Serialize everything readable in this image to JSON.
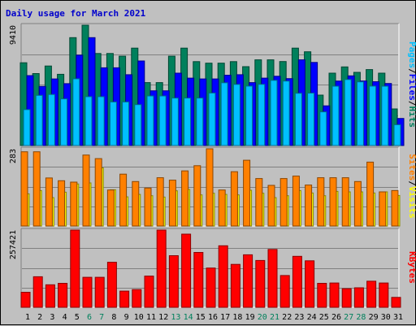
{
  "title": "Daily usage for March 2021",
  "colors": {
    "background": "#c0c0c0",
    "hits": "#00805c",
    "files": "#0000ff",
    "pages": "#00c0ff",
    "visits": "#ffff00",
    "sites": "#ff8000",
    "kbytes": "#ff0000",
    "weekend_label": "#00805c",
    "weekday_label": "#000000"
  },
  "chart_data": [
    {
      "type": "bar",
      "panel": "hits-files-pages",
      "ymax_label": "9410",
      "ylim": [
        0,
        9410
      ],
      "categories": [
        "1",
        "2",
        "3",
        "4",
        "5",
        "6",
        "7",
        "8",
        "9",
        "10",
        "11",
        "12",
        "13",
        "14",
        "15",
        "16",
        "17",
        "18",
        "19",
        "20",
        "21",
        "22",
        "23",
        "24",
        "25",
        "26",
        "27",
        "28",
        "29",
        "30",
        "31"
      ],
      "weekend_days": [
        "6",
        "7",
        "13",
        "14",
        "20",
        "21",
        "27",
        "28"
      ],
      "series": [
        {
          "name": "Hits",
          "color_key": "hits",
          "values": [
            6475,
            5630,
            6220,
            5570,
            8440,
            9410,
            7200,
            7200,
            6990,
            7620,
            4920,
            4920,
            6990,
            7620,
            6560,
            6440,
            6440,
            6560,
            6170,
            6700,
            6700,
            6570,
            7620,
            7330,
            3940,
            5660,
            6150,
            5720,
            5940,
            5660,
            2860
          ]
        },
        {
          "name": "Files",
          "color_key": "files",
          "values": [
            5470,
            4620,
            5210,
            4840,
            7070,
            8440,
            6080,
            6080,
            5540,
            6610,
            4280,
            4280,
            5660,
            5270,
            5210,
            5210,
            5500,
            5540,
            4920,
            5270,
            5420,
            5230,
            6700,
            6500,
            3100,
            5040,
            5450,
            5050,
            4990,
            4850,
            2120
          ]
        },
        {
          "name": "Pages",
          "color_key": "pages",
          "values": [
            2810,
            3920,
            3990,
            3650,
            5220,
            3820,
            3820,
            3410,
            3410,
            3200,
            3880,
            3880,
            3710,
            3710,
            3710,
            4110,
            4910,
            4780,
            4650,
            4790,
            5100,
            5040,
            4090,
            4100,
            2630,
            4640,
            5160,
            4980,
            4650,
            4640,
            1630
          ]
        }
      ]
    },
    {
      "type": "bar",
      "panel": "sites-visits",
      "ymax_label": "283",
      "ylim": [
        0,
        283
      ],
      "categories": [
        "1",
        "2",
        "3",
        "4",
        "5",
        "6",
        "7",
        "8",
        "9",
        "10",
        "11",
        "12",
        "13",
        "14",
        "15",
        "16",
        "17",
        "18",
        "19",
        "20",
        "21",
        "22",
        "23",
        "24",
        "25",
        "26",
        "27",
        "28",
        "29",
        "30",
        "31"
      ],
      "weekend_days": [
        "6",
        "7",
        "13",
        "14",
        "20",
        "21",
        "27",
        "28"
      ],
      "series": [
        {
          "name": "Visits",
          "color_key": "visits",
          "values": [
            118,
            130,
            104,
            124,
            154,
            158,
            213,
            133,
            107,
            116,
            111,
            106,
            129,
            134,
            114,
            120,
            116,
            114,
            131,
            120,
            104,
            111,
            130,
            121,
            111,
            127,
            125,
            125,
            121,
            125,
            112
          ]
        },
        {
          "name": "Sites",
          "color_key": "sites",
          "values": [
            272,
            272,
            176,
            166,
            161,
            260,
            247,
            132,
            190,
            163,
            139,
            177,
            168,
            202,
            221,
            283,
            132,
            199,
            241,
            174,
            149,
            174,
            183,
            150,
            177,
            177,
            177,
            163,
            234,
            125,
            130
          ]
        }
      ]
    },
    {
      "type": "bar",
      "panel": "kbytes",
      "ymax_label": "257421",
      "ylim": [
        0,
        257421
      ],
      "categories": [
        "1",
        "2",
        "3",
        "4",
        "5",
        "6",
        "7",
        "8",
        "9",
        "10",
        "11",
        "12",
        "13",
        "14",
        "15",
        "16",
        "17",
        "18",
        "19",
        "20",
        "21",
        "22",
        "23",
        "24",
        "25",
        "26",
        "27",
        "28",
        "29",
        "30",
        "31"
      ],
      "weekend_days": [
        "6",
        "7",
        "13",
        "14",
        "20",
        "21",
        "27",
        "28"
      ],
      "series": [
        {
          "name": "KBytes",
          "color_key": "kbytes",
          "values": [
            50000,
            102000,
            75000,
            80000,
            257421,
            100000,
            100000,
            150000,
            54000,
            59000,
            104000,
            257421,
            172000,
            244000,
            183000,
            131000,
            205000,
            143000,
            175000,
            156000,
            193000,
            106000,
            170000,
            155000,
            80000,
            81000,
            62000,
            65000,
            87000,
            81000,
            33000
          ]
        }
      ]
    }
  ],
  "legends": [
    {
      "items": [
        {
          "text": "Pages",
          "color_key": "pages"
        },
        {
          "text": "/",
          "color_key": "weekday_label"
        },
        {
          "text": "Files",
          "color_key": "files"
        },
        {
          "text": "/",
          "color_key": "weekday_label"
        },
        {
          "text": "Hits",
          "color_key": "hits"
        }
      ]
    },
    {
      "items": [
        {
          "text": "Sites",
          "color_key": "sites"
        },
        {
          "text": "/",
          "color_key": "weekday_label"
        },
        {
          "text": "Visits",
          "color_key": "visits"
        }
      ]
    },
    {
      "items": [
        {
          "text": "KBytes",
          "color_key": "kbytes"
        }
      ]
    }
  ]
}
